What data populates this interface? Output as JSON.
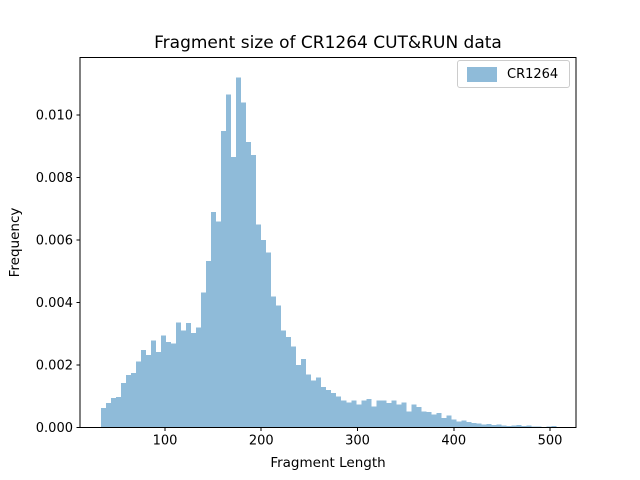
{
  "chart_data": {
    "type": "bar",
    "subtype": "histogram",
    "title": "Fragment size of CR1264 CUT&RUN data",
    "xlabel": "Fragment Length",
    "ylabel": "Frequency",
    "legend": [
      {
        "label": "CR1264",
        "color": "#8fbbd9"
      }
    ],
    "legend_position": "upper right",
    "bar_color": "#8fbbd9",
    "grid": false,
    "xlim": [
      11.7,
      527.0
    ],
    "ylim": [
      0,
      0.011846
    ],
    "xticks": [
      100,
      200,
      300,
      400,
      500
    ],
    "yticks": [
      0.0,
      0.002,
      0.004,
      0.006,
      0.008,
      0.01
    ],
    "bin_start": 33.5,
    "bin_width": 5.2,
    "frequencies": [
      0.00063,
      0.00078,
      0.00094,
      0.00097,
      0.00142,
      0.00168,
      0.00174,
      0.00211,
      0.00248,
      0.00232,
      0.00279,
      0.00242,
      0.00295,
      0.00274,
      0.00269,
      0.00337,
      0.00311,
      0.00334,
      0.00303,
      0.0032,
      0.00433,
      0.00533,
      0.0069,
      0.0066,
      0.00949,
      0.01067,
      0.00867,
      0.01121,
      0.01041,
      0.00914,
      0.00873,
      0.0065,
      0.006,
      0.0056,
      0.0042,
      0.0039,
      0.0031,
      0.0029,
      0.0026,
      0.002,
      0.0022,
      0.0017,
      0.0015,
      0.0016,
      0.0013,
      0.0012,
      0.0011,
      0.001,
      0.00086,
      0.0008,
      0.00086,
      0.00073,
      0.00086,
      0.00092,
      0.00068,
      0.00086,
      0.00086,
      0.00079,
      0.00086,
      0.00073,
      0.0008,
      0.00052,
      0.00073,
      0.00066,
      0.00052,
      0.00049,
      0.00041,
      0.00047,
      0.00031,
      0.00038,
      0.00025,
      0.0002,
      0.00022,
      0.00018,
      0.00015,
      0.00013,
      0.0001,
      0.00012,
      8e-05,
      0.0001,
      6e-05,
      5e-05,
      6e-05,
      8e-05,
      5e-05,
      6e-05,
      3e-05,
      3e-05,
      2e-05,
      3e-05,
      5e-05,
      2e-05
    ]
  }
}
